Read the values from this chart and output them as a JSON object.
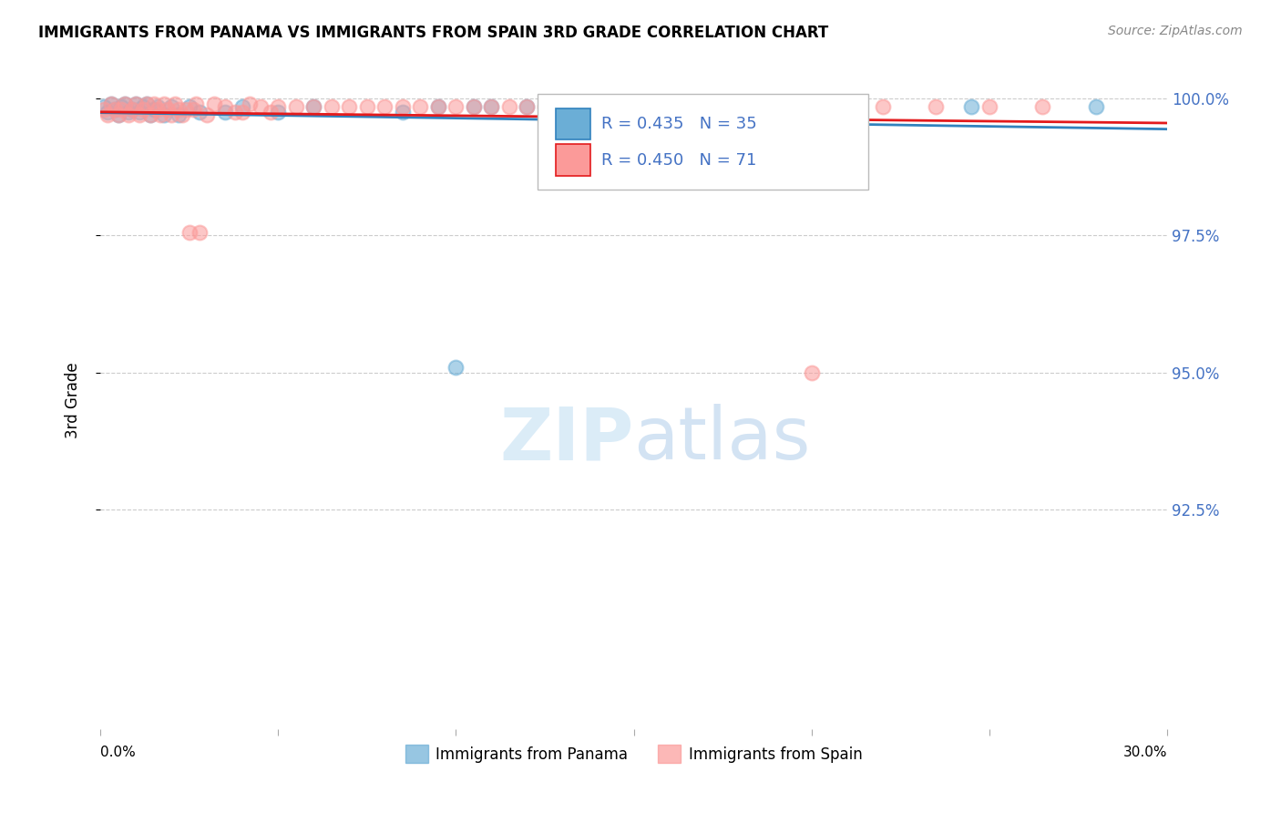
{
  "title": "IMMIGRANTS FROM PANAMA VS IMMIGRANTS FROM SPAIN 3RD GRADE CORRELATION CHART",
  "source": "Source: ZipAtlas.com",
  "ylabel": "3rd Grade",
  "xlim": [
    0.0,
    0.3
  ],
  "ylim": [
    0.885,
    1.005
  ],
  "yticks": [
    0.925,
    0.95,
    0.975,
    1.0
  ],
  "ytick_labels": [
    "92.5%",
    "95.0%",
    "97.5%",
    "100.0%"
  ],
  "panama_color": "#6baed6",
  "spain_color": "#fb9a99",
  "panama_line_color": "#3182bd",
  "spain_line_color": "#e31a1c",
  "R_panama": 0.435,
  "N_panama": 35,
  "R_spain": 0.45,
  "N_spain": 71,
  "panama_x": [
    0.001,
    0.002,
    0.003,
    0.004,
    0.005,
    0.006,
    0.007,
    0.008,
    0.009,
    0.01,
    0.011,
    0.012,
    0.013,
    0.014,
    0.015,
    0.016,
    0.018,
    0.02,
    0.022,
    0.025,
    0.028,
    0.035,
    0.04,
    0.05,
    0.06,
    0.085,
    0.095,
    0.1,
    0.105,
    0.11,
    0.12,
    0.16,
    0.2,
    0.245,
    0.28
  ],
  "panama_y": [
    0.9985,
    0.9975,
    0.999,
    0.998,
    0.997,
    0.9985,
    0.999,
    0.9975,
    0.998,
    0.999,
    0.9975,
    0.9985,
    0.999,
    0.997,
    0.998,
    0.9985,
    0.997,
    0.9985,
    0.997,
    0.9985,
    0.9975,
    0.9975,
    0.9985,
    0.9975,
    0.9985,
    0.9975,
    0.9985,
    0.951,
    0.9985,
    0.9985,
    0.9985,
    0.9985,
    0.9985,
    0.9985,
    0.9985
  ],
  "spain_x": [
    0.001,
    0.002,
    0.003,
    0.004,
    0.005,
    0.006,
    0.007,
    0.008,
    0.009,
    0.01,
    0.011,
    0.012,
    0.013,
    0.014,
    0.015,
    0.016,
    0.017,
    0.018,
    0.019,
    0.02,
    0.021,
    0.022,
    0.023,
    0.024,
    0.025,
    0.026,
    0.027,
    0.028,
    0.03,
    0.032,
    0.035,
    0.038,
    0.04,
    0.042,
    0.045,
    0.048,
    0.05,
    0.055,
    0.06,
    0.065,
    0.07,
    0.075,
    0.08,
    0.085,
    0.09,
    0.095,
    0.1,
    0.105,
    0.11,
    0.115,
    0.12,
    0.125,
    0.13,
    0.135,
    0.14,
    0.145,
    0.15,
    0.155,
    0.16,
    0.165,
    0.17,
    0.175,
    0.18,
    0.185,
    0.19,
    0.2,
    0.21,
    0.22,
    0.235,
    0.25,
    0.265
  ],
  "spain_y": [
    0.998,
    0.997,
    0.999,
    0.998,
    0.997,
    0.998,
    0.999,
    0.997,
    0.998,
    0.999,
    0.997,
    0.998,
    0.999,
    0.997,
    0.999,
    0.998,
    0.997,
    0.999,
    0.998,
    0.997,
    0.999,
    0.998,
    0.997,
    0.998,
    0.9755,
    0.998,
    0.999,
    0.9755,
    0.997,
    0.999,
    0.9985,
    0.9975,
    0.9975,
    0.999,
    0.9985,
    0.9975,
    0.9985,
    0.9985,
    0.9985,
    0.9985,
    0.9985,
    0.9985,
    0.9985,
    0.9985,
    0.9985,
    0.9985,
    0.9985,
    0.9985,
    0.9985,
    0.9985,
    0.9985,
    0.9985,
    0.9985,
    0.9985,
    0.9985,
    0.9985,
    0.9985,
    0.9985,
    0.9985,
    0.9985,
    0.9985,
    0.9985,
    0.9985,
    0.9985,
    0.9985,
    0.95,
    0.9985,
    0.9985,
    0.9985,
    0.9985,
    0.9985
  ],
  "watermark_zip": "ZIP",
  "watermark_atlas": "atlas",
  "legend_label_panama": "Immigrants from Panama",
  "legend_label_spain": "Immigrants from Spain",
  "legend_color": "#4472c4",
  "right_tick_color": "#4472c4"
}
